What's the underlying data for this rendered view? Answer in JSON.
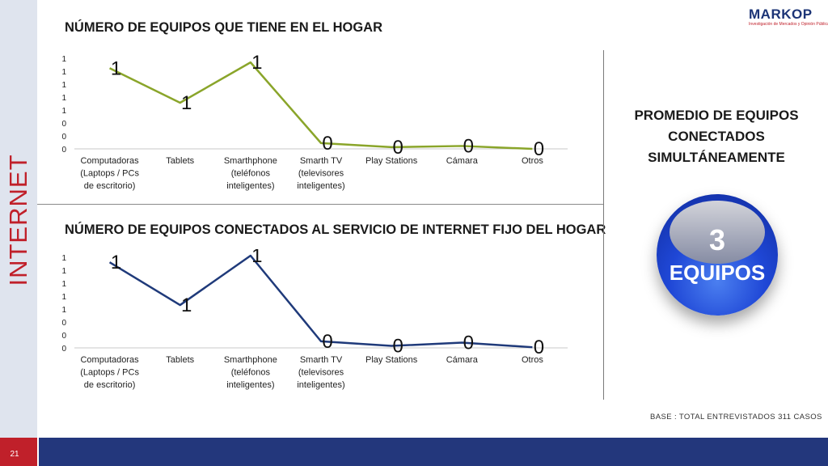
{
  "side_title": "INTERNET",
  "logo": {
    "name": "MARKOP",
    "tagline": "Investigación de Mercados y Opinión Pública"
  },
  "colors": {
    "chart1_line": "#8aa52a",
    "chart2_line": "#1f3a7a",
    "accent_red": "#c0202a",
    "footer_blue": "#23377c",
    "badge_blue": "#1f47d6"
  },
  "section1": {
    "title": "NÚMERO DE EQUIPOS QUE TIENE EN EL HOGAR"
  },
  "section2": {
    "title": "NÚMERO DE EQUIPOS CONECTADOS AL SERVICIO DE INTERNET FIJO DEL HOGAR"
  },
  "promedio": {
    "line1": "PROMEDIO DE EQUIPOS",
    "line2": "CONECTADOS",
    "line3": "SIMULTÁNEAMENTE"
  },
  "badge": {
    "number": "3",
    "label": "EQUIPOS"
  },
  "base_note": "BASE   : TOTAL ENTREVISTADOS 311 CASOS",
  "page_number": "21",
  "chart_data": [
    {
      "type": "line",
      "title": "NÚMERO DE EQUIPOS QUE TIENE EN EL HOGAR",
      "categories": [
        [
          "Computadoras",
          "(Laptops / PCs",
          "de escritorio)"
        ],
        [
          "Tablets"
        ],
        [
          "Smarthphone",
          "(teléfonos",
          "inteligentes)"
        ],
        [
          "Smarth TV",
          "(televisores",
          "inteligentes)"
        ],
        [
          "Play Stations"
        ],
        [
          "Cámara"
        ],
        [
          "Otros"
        ]
      ],
      "values": [
        1.4,
        0.8,
        1.5,
        0.1,
        0.03,
        0.05,
        0.0
      ],
      "data_labels": [
        "1",
        "1",
        "1",
        "0",
        "0",
        "0",
        "0"
      ],
      "y_ticks": [
        "1",
        "1",
        "1",
        "1",
        "1",
        "0",
        "0",
        "0"
      ],
      "ylim": [
        0,
        1.6
      ],
      "grid": false,
      "legend": "none"
    },
    {
      "type": "line",
      "title": "NÚMERO DE EQUIPOS CONECTADOS AL SERVICIO DE INTERNET FIJO DEL HOGAR",
      "categories": [
        [
          "Computadoras",
          "(Laptops / PCs",
          "de escritorio)"
        ],
        [
          "Tablets"
        ],
        [
          "Smarthphone",
          "(teléfonos",
          "inteligentes)"
        ],
        [
          "Smarth TV",
          "(televisores",
          "inteligentes)"
        ],
        [
          "Play Stations"
        ],
        [
          "Cámara"
        ],
        [
          "Otros"
        ]
      ],
      "values": [
        1.3,
        0.65,
        1.4,
        0.1,
        0.03,
        0.08,
        0.01
      ],
      "data_labels": [
        "1",
        "1",
        "1",
        "0",
        "0",
        "0",
        "0"
      ],
      "y_ticks": [
        "1",
        "1",
        "1",
        "1",
        "1",
        "0",
        "0",
        "0"
      ],
      "ylim": [
        0,
        1.4
      ],
      "grid": false,
      "legend": "none"
    }
  ]
}
